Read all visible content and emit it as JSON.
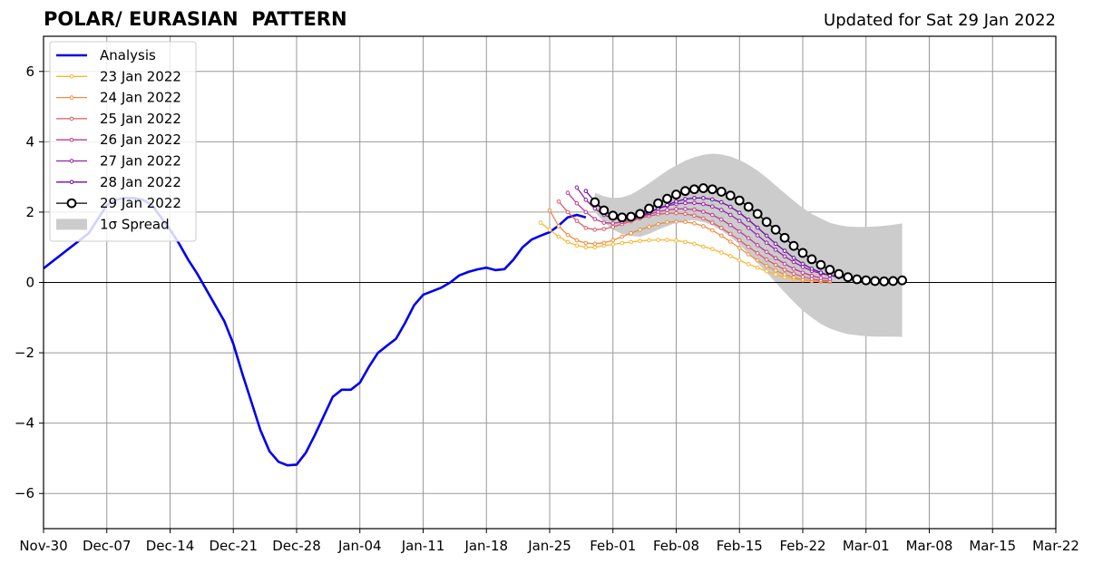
{
  "header": {
    "title": "POLAR/ EURASIAN  PATTERN",
    "updated": "Updated for Sat 29 Jan 2022"
  },
  "chart_data": {
    "type": "line",
    "title": "POLAR/ EURASIAN  PATTERN",
    "xlabel": "",
    "ylabel": "",
    "x_start": "Nov-30",
    "x_unit": "day",
    "xlim": [
      0,
      112
    ],
    "ylim": [
      -7,
      7
    ],
    "x_ticks": [
      {
        "x": 0,
        "label": "Nov-30"
      },
      {
        "x": 7,
        "label": "Dec-07"
      },
      {
        "x": 14,
        "label": "Dec-14"
      },
      {
        "x": 21,
        "label": "Dec-21"
      },
      {
        "x": 28,
        "label": "Dec-28"
      },
      {
        "x": 35,
        "label": "Jan-04"
      },
      {
        "x": 42,
        "label": "Jan-11"
      },
      {
        "x": 49,
        "label": "Jan-18"
      },
      {
        "x": 56,
        "label": "Jan-25"
      },
      {
        "x": 63,
        "label": "Feb-01"
      },
      {
        "x": 70,
        "label": "Feb-08"
      },
      {
        "x": 77,
        "label": "Feb-15"
      },
      {
        "x": 84,
        "label": "Feb-22"
      },
      {
        "x": 91,
        "label": "Mar-01"
      },
      {
        "x": 98,
        "label": "Mar-08"
      },
      {
        "x": 105,
        "label": "Mar-15"
      },
      {
        "x": 112,
        "label": "Mar-22"
      }
    ],
    "y_ticks": [
      -6,
      -4,
      -2,
      0,
      2,
      4,
      6
    ],
    "y_tick_labels": [
      "−6",
      "−4",
      "−2",
      "0",
      "2",
      "4",
      "6"
    ],
    "grid": true,
    "zero_line": true,
    "legend_position": "top-left",
    "series": [
      {
        "name": "Analysis",
        "color": "#0000ee",
        "style": "analysis",
        "x_start": 0,
        "values": [
          0.4,
          0.6,
          0.8,
          1.0,
          1.2,
          1.4,
          1.8,
          2.2,
          2.35,
          2.4,
          2.4,
          2.35,
          2.2,
          1.85,
          1.5,
          1.1,
          0.65,
          0.25,
          -0.2,
          -0.65,
          -1.1,
          -1.75,
          -2.6,
          -3.4,
          -4.2,
          -4.8,
          -5.1,
          -5.2,
          -5.18,
          -4.85,
          -4.35,
          -3.8,
          -3.25,
          -3.05,
          -3.05,
          -2.85,
          -2.4,
          -2.0,
          -1.8,
          -1.6,
          -1.15,
          -0.65,
          -0.35,
          -0.25,
          -0.15,
          0.0,
          0.2,
          0.3,
          0.37,
          0.42,
          0.35,
          0.38,
          0.65,
          1.0,
          1.22,
          1.33,
          1.43,
          1.62,
          1.85,
          1.92,
          1.85
        ]
      },
      {
        "name": "23 Jan 2022",
        "color": "#f8b830",
        "style": "forecast",
        "x_start": 55,
        "values": [
          1.7,
          1.5,
          1.3,
          1.15,
          1.05,
          1.0,
          1.0,
          1.05,
          1.08,
          1.12,
          1.15,
          1.18,
          1.2,
          1.21,
          1.21,
          1.19,
          1.15,
          1.1,
          1.02,
          0.95,
          0.85,
          0.75,
          0.63,
          0.52,
          0.42,
          0.32,
          0.23,
          0.15,
          0.1,
          0.06,
          0.04,
          0.02,
          0.02
        ]
      },
      {
        "name": "24 Jan 2022",
        "color": "#ef8c40",
        "style": "forecast",
        "x_start": 56,
        "values": [
          2.05,
          1.6,
          1.35,
          1.2,
          1.12,
          1.1,
          1.13,
          1.2,
          1.3,
          1.4,
          1.5,
          1.58,
          1.66,
          1.71,
          1.73,
          1.72,
          1.68,
          1.6,
          1.48,
          1.33,
          1.16,
          0.98,
          0.8,
          0.63,
          0.47,
          0.34,
          0.23,
          0.14,
          0.08,
          0.05,
          0.03,
          0.02
        ]
      },
      {
        "name": "25 Jan 2022",
        "color": "#dd5a68",
        "style": "forecast",
        "x_start": 57,
        "values": [
          2.3,
          2.0,
          1.75,
          1.55,
          1.5,
          1.52,
          1.58,
          1.66,
          1.74,
          1.82,
          1.89,
          1.94,
          1.97,
          1.97,
          1.95,
          1.9,
          1.82,
          1.7,
          1.55,
          1.38,
          1.2,
          1.01,
          0.83,
          0.65,
          0.5,
          0.36,
          0.25,
          0.16,
          0.1,
          0.06,
          0.04
        ]
      },
      {
        "name": "26 Jan 2022",
        "color": "#bb3c8e",
        "style": "forecast",
        "x_start": 58,
        "values": [
          2.55,
          2.25,
          2.0,
          1.8,
          1.7,
          1.68,
          1.72,
          1.78,
          1.86,
          1.94,
          2.01,
          2.06,
          2.09,
          2.09,
          2.07,
          2.01,
          1.92,
          1.79,
          1.63,
          1.45,
          1.26,
          1.06,
          0.87,
          0.69,
          0.53,
          0.39,
          0.28,
          0.19,
          0.13,
          0.1
        ]
      },
      {
        "name": "27 Jan 2022",
        "color": "#9520a8",
        "style": "forecast",
        "x_start": 59,
        "values": [
          2.7,
          2.35,
          2.1,
          1.92,
          1.82,
          1.8,
          1.84,
          1.92,
          2.01,
          2.1,
          2.18,
          2.23,
          2.26,
          2.26,
          2.23,
          2.16,
          2.06,
          1.92,
          1.75,
          1.55,
          1.34,
          1.13,
          0.93,
          0.74,
          0.58,
          0.44,
          0.33,
          0.25,
          0.2,
          0.17
        ]
      },
      {
        "name": "28 Jan 2022",
        "color": "#6a0ea0",
        "style": "forecast",
        "x_start": 60,
        "values": [
          2.6,
          2.3,
          2.05,
          1.88,
          1.8,
          1.82,
          1.88,
          1.98,
          2.1,
          2.2,
          2.3,
          2.37,
          2.4,
          2.4,
          2.36,
          2.28,
          2.15,
          1.98,
          1.78,
          1.56,
          1.33,
          1.1,
          0.9,
          0.7,
          0.53,
          0.39,
          0.28,
          0.2,
          0.15,
          0.13,
          0.14
        ]
      },
      {
        "name": "29 Jan 2022",
        "color": "#000000",
        "style": "current",
        "x_start": 61,
        "values": [
          2.28,
          2.05,
          1.9,
          1.85,
          1.87,
          1.95,
          2.1,
          2.25,
          2.38,
          2.5,
          2.6,
          2.65,
          2.68,
          2.65,
          2.58,
          2.47,
          2.33,
          2.15,
          1.95,
          1.72,
          1.5,
          1.27,
          1.04,
          0.84,
          0.66,
          0.5,
          0.36,
          0.24,
          0.15,
          0.09,
          0.06,
          0.04,
          0.03,
          0.04,
          0.06
        ]
      },
      {
        "name": "1σ Spread",
        "color": "#cccccc",
        "style": "spread",
        "x_start": 61,
        "upper": [
          2.55,
          2.45,
          2.4,
          2.42,
          2.5,
          2.65,
          2.82,
          3.0,
          3.18,
          3.33,
          3.46,
          3.56,
          3.63,
          3.66,
          3.64,
          3.58,
          3.48,
          3.35,
          3.18,
          2.98,
          2.76,
          2.54,
          2.32,
          2.12,
          1.95,
          1.82,
          1.7,
          1.63,
          1.59,
          1.58,
          1.58,
          1.59,
          1.61,
          1.64,
          1.68
        ],
        "lower": [
          2.0,
          1.72,
          1.5,
          1.38,
          1.32,
          1.3,
          1.38,
          1.5,
          1.6,
          1.7,
          1.75,
          1.77,
          1.72,
          1.62,
          1.48,
          1.3,
          1.08,
          0.82,
          0.55,
          0.28,
          0.0,
          -0.28,
          -0.55,
          -0.8,
          -1.0,
          -1.18,
          -1.31,
          -1.4,
          -1.47,
          -1.5,
          -1.53,
          -1.54,
          -1.54,
          -1.54,
          -1.55
        ]
      }
    ]
  }
}
